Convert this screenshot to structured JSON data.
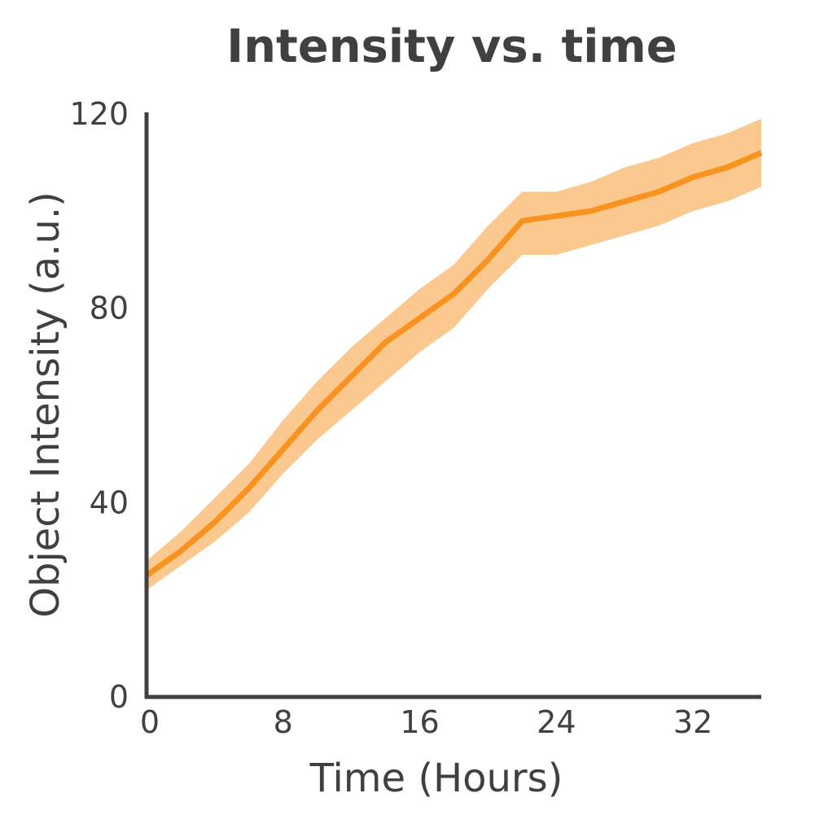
{
  "chart_data": {
    "type": "line",
    "title": "Intensity vs. time",
    "xlabel": "Time (Hours)",
    "ylabel": "Object Intensity (a.u.)",
    "xlim": [
      0,
      36
    ],
    "ylim": [
      0,
      120
    ],
    "xticks": [
      0,
      8,
      16,
      24,
      32
    ],
    "yticks": [
      0,
      40,
      80,
      120
    ],
    "grid": false,
    "colors": {
      "line": "#f7931e",
      "band": "#fbc88f",
      "axis": "#404040"
    },
    "series": [
      {
        "x": [
          0,
          2,
          4,
          6,
          8,
          10,
          12,
          14,
          16,
          18,
          20,
          22,
          24,
          26,
          28,
          30,
          32,
          34,
          36
        ],
        "y": [
          25,
          30,
          36,
          43,
          51,
          59,
          66,
          73,
          78,
          83,
          90,
          98,
          99,
          100,
          102,
          104,
          107,
          109,
          112
        ],
        "lower": [
          22,
          27,
          32,
          38,
          46,
          53,
          59,
          65,
          71,
          76,
          84,
          91,
          91,
          93,
          95,
          97,
          100,
          102,
          105
        ],
        "upper": [
          28,
          34,
          41,
          48,
          57,
          65,
          72,
          78,
          84,
          89,
          97,
          104,
          104,
          106,
          109,
          111,
          114,
          116,
          119
        ]
      }
    ]
  }
}
